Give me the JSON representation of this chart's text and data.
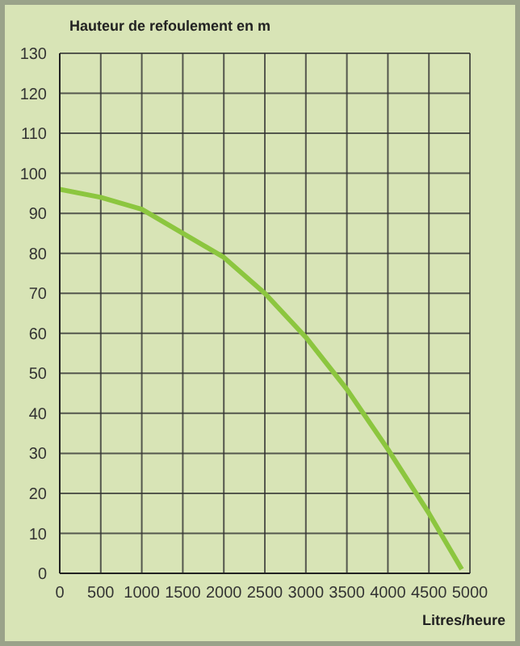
{
  "chart_data": {
    "type": "line",
    "ylabel": "Hauteur de refoulement en m",
    "xlabel": "Litres/heure",
    "x": [
      0,
      500,
      1000,
      1500,
      2000,
      2500,
      3000,
      3500,
      4000,
      4500,
      4900
    ],
    "series": [
      {
        "color": "#8cc63f",
        "values": [
          96,
          94,
          91,
          85,
          79,
          70,
          59,
          46,
          31,
          15,
          1
        ]
      }
    ],
    "xlim": [
      0,
      5000
    ],
    "xticks": [
      0,
      500,
      1000,
      1500,
      2000,
      2500,
      3000,
      3500,
      4000,
      4500,
      5000
    ],
    "ylim": [
      0,
      130
    ],
    "yticks": [
      0,
      10,
      20,
      30,
      40,
      50,
      60,
      70,
      80,
      90,
      100,
      110,
      120,
      130
    ],
    "grid": true,
    "marker": "none",
    "line_style": "solid"
  }
}
